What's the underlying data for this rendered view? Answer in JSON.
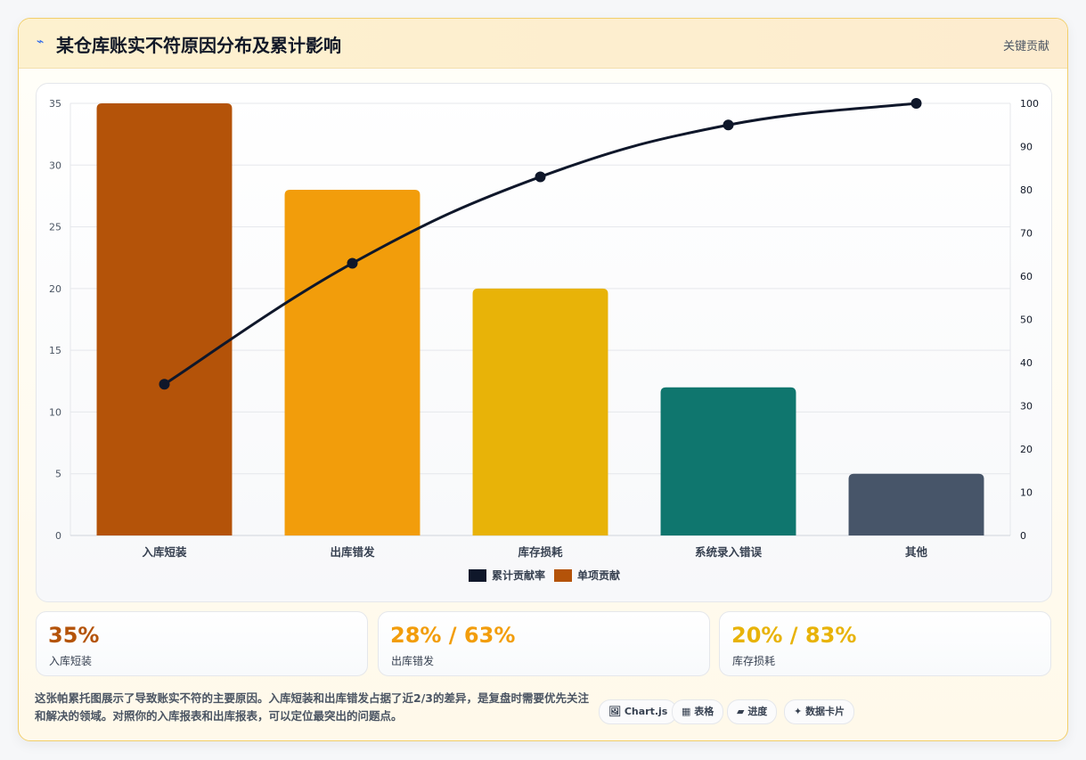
{
  "header": {
    "icon": "chart-line-icon",
    "title": "某仓库账实不符原因分布及累计影响",
    "right_label": "关键贡献"
  },
  "chart_data": {
    "type": "bar",
    "categories": [
      "入库短装",
      "出库错发",
      "库存损耗",
      "系统录入错误",
      "其他"
    ],
    "series": [
      {
        "name": "单项贡献",
        "type": "bar",
        "axis": "left",
        "values": [
          35,
          28,
          20,
          12,
          5
        ],
        "colors": [
          "#b45309",
          "#f29d0b",
          "#e8b308",
          "#0f766e",
          "#475569"
        ]
      },
      {
        "name": "累计贡献率",
        "type": "line",
        "axis": "right",
        "values": [
          35,
          63,
          83,
          95,
          100
        ],
        "color": "#0f172a"
      }
    ],
    "y_left": {
      "min": 0,
      "max": 35,
      "ticks": [
        "0",
        "5",
        "10",
        "15",
        "20",
        "25",
        "30",
        "35"
      ]
    },
    "y_right": {
      "min": 0,
      "max": 100,
      "ticks": [
        "0",
        "10",
        "20",
        "30",
        "40",
        "50",
        "60",
        "70",
        "80",
        "90",
        "100"
      ]
    },
    "legend": [
      {
        "label": "累计贡献率",
        "color": "#0f172a"
      },
      {
        "label": "单项贡献",
        "color": "#b45309"
      }
    ],
    "legend_position": "bottom",
    "grid": true
  },
  "stats": [
    {
      "value": "35%",
      "label": "入库短装",
      "color": "#b45309"
    },
    {
      "value": "28% / 63%",
      "label": "出库错发",
      "color": "#f29d0b"
    },
    {
      "value": "20% / 83%",
      "label": "库存损耗",
      "color": "#e8b308"
    }
  ],
  "description": "这张帕累托图展示了导致账实不符的主要原因。入库短装和出库错发占据了近2/3的差异，是复盘时需要优先关注和解决的领域。对照你的入库报表和出库报表，可以定位最突出的问题点。",
  "chips": [
    {
      "icon": "🖼",
      "label": "Chart.js"
    },
    {
      "icon": "▦",
      "label": "表格"
    },
    {
      "icon": "▰",
      "label": "进度"
    },
    {
      "icon": "✦",
      "label": "数据卡片"
    }
  ]
}
